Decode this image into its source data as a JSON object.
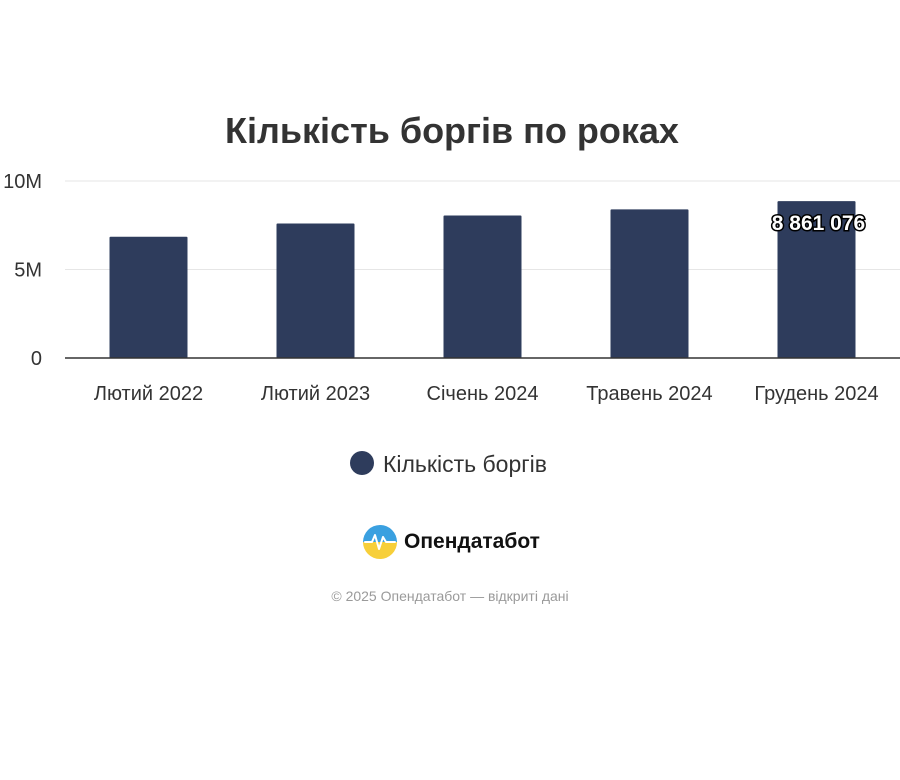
{
  "colors": {
    "bar": "#2e3c5c",
    "grid": "#e6e6e6",
    "axis": "#333333",
    "logo_blue": "#3aa0e0",
    "logo_yellow": "#f7cf3a"
  },
  "brand": {
    "name": "Опендатабот",
    "icon": "opendatabot-logo-icon"
  },
  "footer": {
    "text": "© 2025 Опендатабот — відкриті дані"
  },
  "chart_data": {
    "type": "bar",
    "title": "Кількість боргів по роках",
    "xlabel": "",
    "ylabel": "",
    "categories": [
      "Лютий 2022",
      "Лютий 2023",
      "Січень 2024",
      "Травень 2024",
      "Грудень 2024"
    ],
    "series": [
      {
        "name": "Кількість боргів",
        "values": [
          6850000,
          7600000,
          8050000,
          8400000,
          8861076
        ]
      }
    ],
    "data_labels": [
      null,
      null,
      null,
      null,
      "8 861 076"
    ],
    "ylim": [
      0,
      10000000
    ],
    "yticks": [
      {
        "value": 0,
        "label": "0"
      },
      {
        "value": 5000000,
        "label": "5M"
      },
      {
        "value": 10000000,
        "label": "10M"
      }
    ],
    "grid": true,
    "legend": "bottom-center"
  }
}
